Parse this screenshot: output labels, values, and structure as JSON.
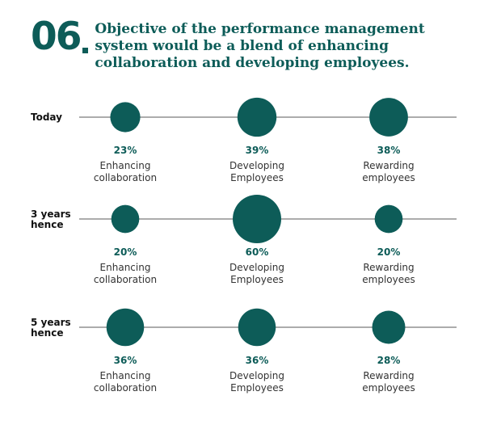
{
  "header": {
    "number": "06",
    "title": "Objective of the performance management system would be a blend of enhancing collaboration and developing employees."
  },
  "colors": {
    "accent": "#0d5c58",
    "line": "#7a7a7a",
    "text": "#1a1a1a"
  },
  "chart_data": {
    "type": "bubble-timeline",
    "rows": [
      {
        "label_lines": [
          "Today"
        ],
        "items": [
          {
            "value": 23,
            "label": "23%",
            "name_lines": [
              "Enhancing",
              "collaboration"
            ]
          },
          {
            "value": 39,
            "label": "39%",
            "name_lines": [
              "Developing",
              "Employees"
            ]
          },
          {
            "value": 38,
            "label": "38%",
            "name_lines": [
              "Rewarding",
              "employees"
            ]
          }
        ]
      },
      {
        "label_lines": [
          "3 years",
          "hence"
        ],
        "items": [
          {
            "value": 20,
            "label": "20%",
            "name_lines": [
              "Enhancing",
              "collaboration"
            ]
          },
          {
            "value": 60,
            "label": "60%",
            "name_lines": [
              "Developing",
              "Employees"
            ]
          },
          {
            "value": 20,
            "label": "20%",
            "name_lines": [
              "Rewarding",
              "employees"
            ]
          }
        ]
      },
      {
        "label_lines": [
          "5 years",
          "hence"
        ],
        "items": [
          {
            "value": 36,
            "label": "36%",
            "name_lines": [
              "Enhancing",
              "collaboration"
            ]
          },
          {
            "value": 36,
            "label": "36%",
            "name_lines": [
              "Developing",
              "Employees"
            ]
          },
          {
            "value": 28,
            "label": "28%",
            "name_lines": [
              "Rewarding",
              "employees"
            ]
          }
        ]
      }
    ]
  }
}
